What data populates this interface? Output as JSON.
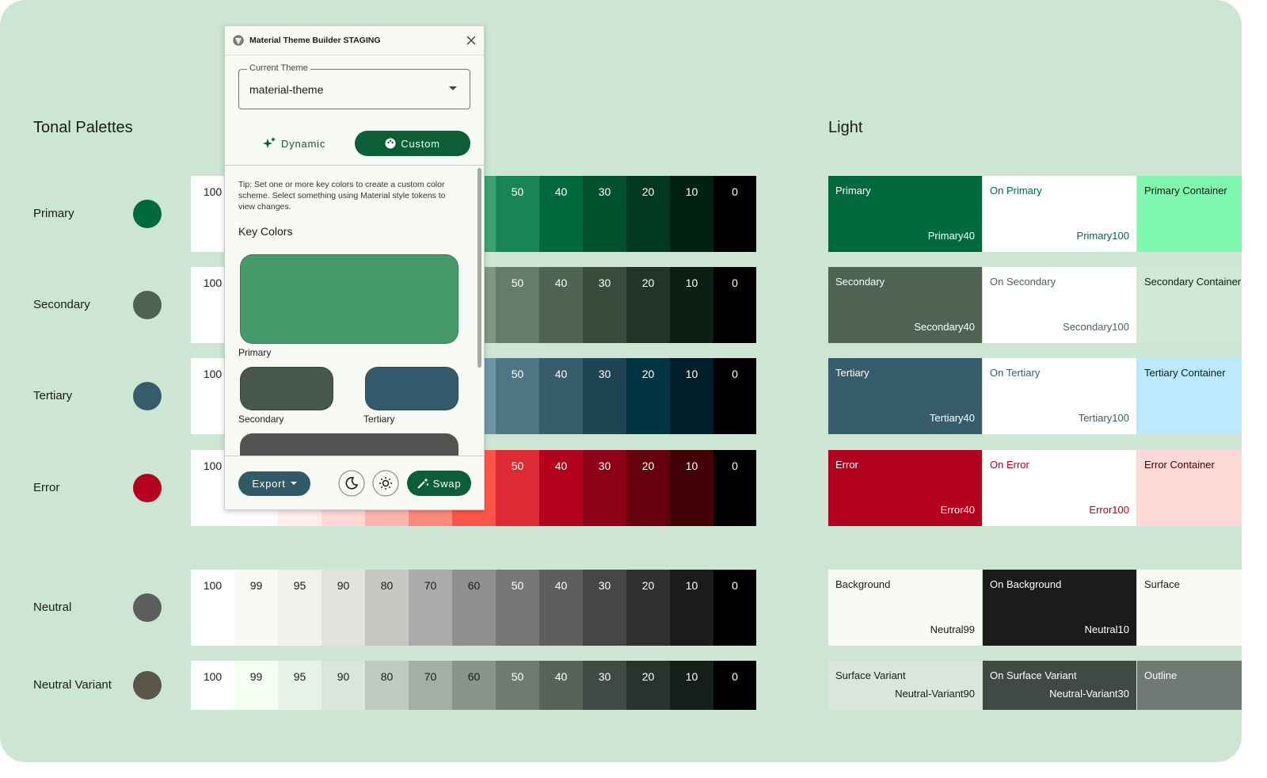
{
  "palettes_title": "Tonal Palettes",
  "tones": [
    100,
    99,
    95,
    90,
    80,
    70,
    60,
    50,
    40,
    30,
    20,
    10,
    0
  ],
  "palettes": [
    {
      "name": "Primary",
      "key_color": "#006a3f",
      "colors": [
        "#ffffff",
        "#f5fff5",
        "#c2ffd6",
        "#8ff7b5",
        "#73daa0",
        "#57be86",
        "#3ba26c",
        "#188554",
        "#006a3f",
        "#00512e",
        "#00391f",
        "#002110",
        "#000000"
      ]
    },
    {
      "name": "Secondary",
      "key_color": "#4e6353",
      "colors": [
        "#ffffff",
        "#f5fff5",
        "#e4f4e6",
        "#d0e8d4",
        "#b4ccb8",
        "#99b19e",
        "#7f9684",
        "#667c6b",
        "#4e6353",
        "#384b3d",
        "#223528",
        "#0d1f13",
        "#000000"
      ]
    },
    {
      "name": "Tertiary",
      "key_color": "#375d6c",
      "colors": [
        "#ffffff",
        "#f6fcff",
        "#e0f4ff",
        "#bde9ff",
        "#a1cddf",
        "#86b1c3",
        "#6c96a8",
        "#4f7585",
        "#375d6c",
        "#1f4554",
        "#013545",
        "#001e2a",
        "#000000"
      ]
    },
    {
      "name": "Error",
      "key_color": "#b3001f",
      "colors": [
        "#ffffff",
        "#fffbff",
        "#ffedea",
        "#ffdad6",
        "#ffb4ab",
        "#ff897d",
        "#ff5449",
        "#de2a35",
        "#b3001f",
        "#8e0015",
        "#66000c",
        "#400004",
        "#000000"
      ]
    },
    {
      "name": "Neutral",
      "key_color": "#5d5f5c",
      "colors": [
        "#ffffff",
        "#f8faf6",
        "#eff1ed",
        "#e1e3df",
        "#c5c7c3",
        "#a9aca8",
        "#8f918e",
        "#757874",
        "#5d5f5c",
        "#454745",
        "#2e312e",
        "#191c1a",
        "#000000"
      ]
    },
    {
      "name": "Neutral Variant",
      "key_color": "#5b5448",
      "colors": [
        "#ffffff",
        "#f5fff4",
        "#e8f1e8",
        "#dae5dc",
        "#becac0",
        "#a3aea5",
        "#89948b",
        "#6f7a72",
        "#57625a",
        "#404943",
        "#29332d",
        "#151e18",
        "#000000"
      ]
    }
  ],
  "scheme": {
    "title": "Light",
    "rows": [
      [
        {
          "name": "Primary",
          "token": "Primary40",
          "bg": "#006a3f",
          "fg": "#ffffff"
        },
        {
          "name": "On Primary",
          "token": "Primary100",
          "bg": "#ffffff",
          "fg": "#006a3f"
        },
        {
          "name": "Primary Container",
          "bg": "#80f8b0",
          "fg": "#002110"
        }
      ],
      [
        {
          "name": "Secondary",
          "token": "Secondary40",
          "bg": "#4e6353",
          "fg": "#ffffff"
        },
        {
          "name": "On Secondary",
          "token": "Secondary100",
          "bg": "#ffffff",
          "fg": "#4e6353"
        },
        {
          "name": "Secondary Container",
          "bg": "#d0e8d4",
          "fg": "#0d1f13"
        }
      ],
      [
        {
          "name": "Tertiary",
          "token": "Tertiary40",
          "bg": "#375d6c",
          "fg": "#ffffff"
        },
        {
          "name": "On Tertiary",
          "token": "Tertiary100",
          "bg": "#ffffff",
          "fg": "#375d6c"
        },
        {
          "name": "Tertiary Container",
          "bg": "#bde9ff",
          "fg": "#001e2a"
        }
      ],
      [
        {
          "name": "Error",
          "token": "Error40",
          "bg": "#b3001f",
          "fg": "#ffffff"
        },
        {
          "name": "On Error",
          "token": "Error100",
          "bg": "#ffffff",
          "fg": "#b3001f"
        },
        {
          "name": "Error Container",
          "bg": "#ffdad6",
          "fg": "#410002"
        }
      ],
      [
        {
          "name": "Background",
          "token": "Neutral99",
          "bg": "#f8faf6",
          "fg": "#191c1a"
        },
        {
          "name": "On Background",
          "token": "Neutral10",
          "bg": "#191c1a",
          "fg": "#ffffff"
        },
        {
          "name": "Surface",
          "bg": "#f8faf6",
          "fg": "#191c1a"
        }
      ],
      [
        {
          "name": "Surface Variant",
          "token": "Neutral-Variant90",
          "bg": "#dae5dc",
          "fg": "#191c1a"
        },
        {
          "name": "On Surface Variant",
          "token": "Neutral-Variant30",
          "bg": "#404943",
          "fg": "#ffffff"
        },
        {
          "name": "Outline",
          "bg": "#707973",
          "fg": "#ffffff"
        }
      ]
    ]
  },
  "dialog": {
    "title": "Material Theme Builder STAGING",
    "field_label": "Current Theme",
    "field_value": "material-theme",
    "tabs": [
      "Dynamic",
      "Custom"
    ],
    "tip": "Tip: Set one or more key colors to create a custom color scheme. Select something using Material style tokens to view changes.",
    "section": "Key Colors",
    "key_colors": [
      {
        "name": "Primary",
        "color": "#459b6a"
      },
      {
        "name": "Secondary",
        "color": "#47574b"
      },
      {
        "name": "Tertiary",
        "color": "#335b6b"
      }
    ],
    "export": "Export",
    "swap": "Swap"
  }
}
